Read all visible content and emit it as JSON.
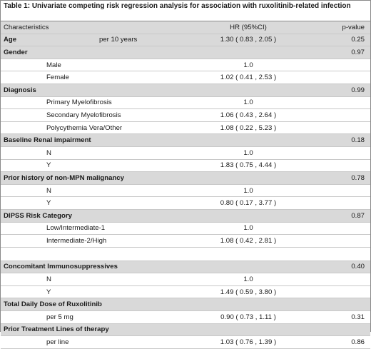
{
  "caption": "Table 1: Univariate competing risk regression analysis for association with ruxolitinib-related infection",
  "header": {
    "characteristics": "Characteristics",
    "hr": "HR (95%CI)",
    "pvalue": "p-value"
  },
  "rows": [
    {
      "label": "Age",
      "sub": "per 10 years",
      "hr": "1.30 ( 0.83 , 2.05 )",
      "p": "0.25"
    },
    {
      "label": "Gender",
      "p": "0.97"
    },
    {
      "sub": "Male",
      "hr": "1.0"
    },
    {
      "sub": "Female",
      "hr": "1.02 ( 0.41 , 2.53 )"
    },
    {
      "label": "Diagnosis",
      "p": "0.99"
    },
    {
      "sub": "Primary Myelofibrosis",
      "hr": "1.0"
    },
    {
      "sub": "Secondary Myelofibrosis",
      "hr": "1.06 ( 0.43 , 2.64 )"
    },
    {
      "sub": "Polycythemia Vera/Other",
      "hr": "1.08 ( 0.22 , 5.23 )"
    },
    {
      "label": "Baseline Renal impairment",
      "p": "0.18"
    },
    {
      "sub": "N",
      "hr": "1.0"
    },
    {
      "sub": "Y",
      "hr": "1.83 ( 0.75 , 4.44 )"
    },
    {
      "label": "Prior history of non-MPN malignancy",
      "p": "0.78"
    },
    {
      "sub": "N",
      "hr": "1.0"
    },
    {
      "sub": "Y",
      "hr": "0.80 ( 0.17 , 3.77 )"
    },
    {
      "label": "DIPSS Risk Category",
      "p": "0.87"
    },
    {
      "sub": "Low/Intermediate-1",
      "hr": "1.0"
    },
    {
      "sub": "Intermediate-2/High",
      "hr": "1.08 ( 0.42 , 2.81 )"
    },
    {
      "label": "Concomitant Immunosuppressives",
      "p": "0.40"
    },
    {
      "sub": "N",
      "hr": "1.0"
    },
    {
      "sub": "Y",
      "hr": "1.49 ( 0.59 , 3.80 )"
    },
    {
      "label": "Total Daily Dose of Ruxolitinib"
    },
    {
      "sub": "per 5 mg",
      "hr": "0.90 ( 0.73 , 1.11 )",
      "p": "0.31"
    },
    {
      "label": "Prior Treatment Lines of therapy"
    },
    {
      "sub": "per line",
      "hr": "1.03 ( 0.76 , 1.39 )",
      "p": "0.86"
    }
  ]
}
